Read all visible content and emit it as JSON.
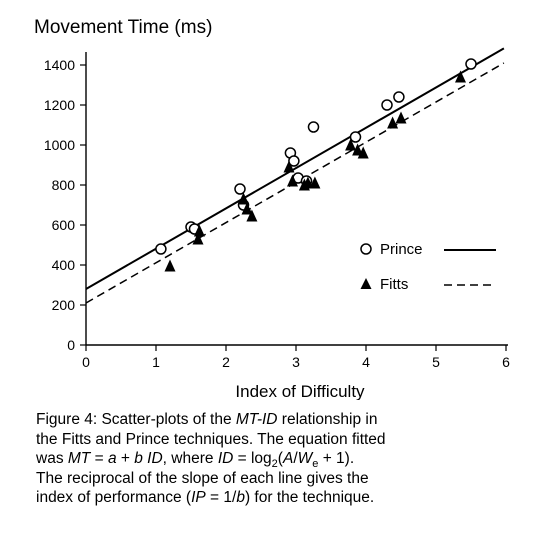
{
  "chart_data": {
    "type": "scatter",
    "title": "",
    "ylabel": "Movement Time (ms)",
    "xlabel": "Index of Difficulty",
    "xlim": [
      0,
      6
    ],
    "ylim": [
      0,
      1400
    ],
    "xticks": [
      "0",
      "1",
      "2",
      "3",
      "4",
      "5",
      "6"
    ],
    "yticks": [
      "0",
      "200",
      "400",
      "600",
      "800",
      "1000",
      "1200",
      "1400"
    ],
    "grid": false,
    "legend_position": "right",
    "series": [
      {
        "name": "Prince",
        "marker": "circle",
        "line": "solid",
        "fit": {
          "intercept": 280,
          "slope": 201.5
        },
        "points": [
          [
            1.07,
            480
          ],
          [
            1.5,
            590
          ],
          [
            1.55,
            580
          ],
          [
            2.2,
            780
          ],
          [
            2.25,
            700
          ],
          [
            2.92,
            960
          ],
          [
            2.97,
            920
          ],
          [
            3.03,
            835
          ],
          [
            3.15,
            820
          ],
          [
            3.25,
            1090
          ],
          [
            3.85,
            1040
          ],
          [
            4.3,
            1200
          ],
          [
            4.47,
            1240
          ],
          [
            5.5,
            1405
          ]
        ]
      },
      {
        "name": "Fitts",
        "marker": "triangle",
        "line": "dashed",
        "fit": {
          "intercept": 210,
          "slope": 201
        },
        "points": [
          [
            1.2,
            395
          ],
          [
            1.6,
            530
          ],
          [
            1.62,
            570
          ],
          [
            2.25,
            730
          ],
          [
            2.3,
            680
          ],
          [
            2.37,
            645
          ],
          [
            2.9,
            890
          ],
          [
            2.95,
            820
          ],
          [
            3.12,
            800
          ],
          [
            3.17,
            810
          ],
          [
            3.27,
            810
          ],
          [
            3.78,
            1000
          ],
          [
            3.88,
            975
          ],
          [
            3.96,
            960
          ],
          [
            4.38,
            1110
          ],
          [
            4.5,
            1135
          ],
          [
            5.35,
            1340
          ]
        ]
      }
    ]
  },
  "caption": {
    "line1_a": "Figure 4:  Scatter-plots of the ",
    "line1_b": "MT-ID",
    "line1_c": " relationship in",
    "line2": "the Fitts and Prince techniques.  The equation fitted",
    "line3_a": "was ",
    "line3_b": "MT",
    "line3_c": " =  ",
    "line3_d": "a",
    "line3_e": "  +  ",
    "line3_f": "b ID",
    "line3_g": ", where ",
    "line3_h": "ID",
    "line3_i": " = log",
    "line3_j": "2",
    "line3_k": "(",
    "line3_l": "A",
    "line3_m": "/",
    "line3_n": "W",
    "line3_o": "e",
    "line3_p": " + 1).",
    "line4": "The reciprocal of the slope of each line gives the",
    "line5_a": "index of performance (",
    "line5_b": "IP",
    "line5_c": "  = 1/",
    "line5_d": "b",
    "line5_e": ") for the technique."
  }
}
